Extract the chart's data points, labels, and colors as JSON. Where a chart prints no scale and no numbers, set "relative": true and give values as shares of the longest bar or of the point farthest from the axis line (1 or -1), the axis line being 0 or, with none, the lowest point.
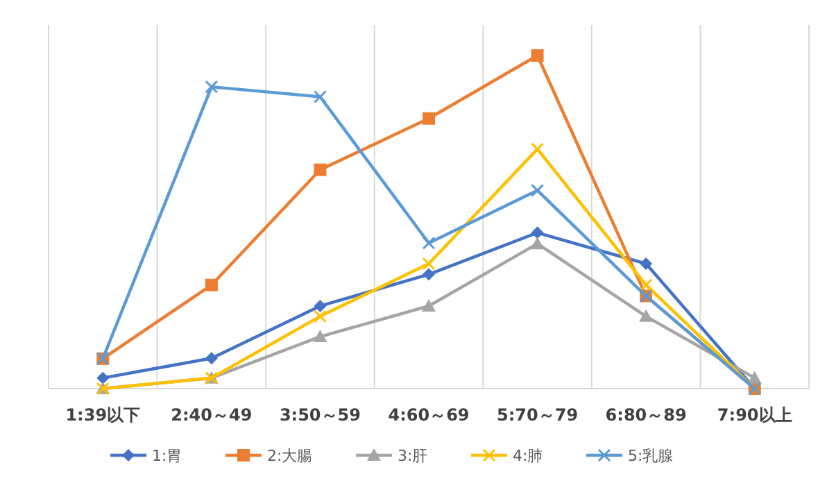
{
  "chart_data": {
    "type": "line",
    "relative": true,
    "grid": "x",
    "legend": "bottom",
    "categories": [
      "1:39以下",
      "2:40～49",
      "3:50～59",
      "4:60～69",
      "5:70～79",
      "6:80～89",
      "7:90以上"
    ],
    "series": [
      {
        "name": "1:胃",
        "color": "#4472c4",
        "marker": "diamond",
        "values": [
          0.032,
          0.091,
          0.248,
          0.343,
          0.468,
          0.375,
          0
        ]
      },
      {
        "name": "2:大腸",
        "color": "#ed7d31",
        "marker": "square",
        "values": [
          0.09,
          0.311,
          0.657,
          0.811,
          1,
          0.278,
          0
        ]
      },
      {
        "name": "3:肝",
        "color": "#a5a5a5",
        "marker": "triangle",
        "values": [
          0,
          0.032,
          0.156,
          0.248,
          0.435,
          0.217,
          0.032
        ]
      },
      {
        "name": "4:肺",
        "color": "#ffc000",
        "marker": "cross",
        "values": [
          0,
          0.032,
          0.217,
          0.375,
          0.719,
          0.311,
          0
        ]
      },
      {
        "name": "5:乳腺",
        "color": "#5b9bd5",
        "marker": "cross",
        "values": [
          0.09,
          0.906,
          0.876,
          0.437,
          0.595,
          0.278,
          0
        ]
      }
    ]
  }
}
